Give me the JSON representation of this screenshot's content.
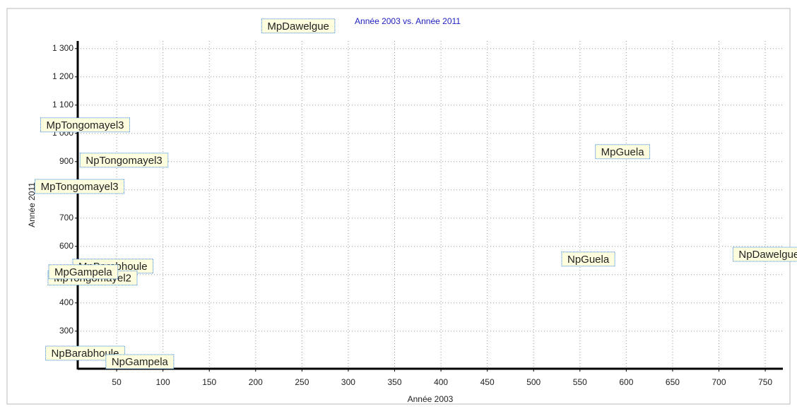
{
  "chart_data": {
    "type": "scatter",
    "title": "Année 2003 vs. Année 2011",
    "x_label": "Année 2003",
    "y_label": "Année 2011",
    "points": [
      {
        "label": "MpDawelgue",
        "x": 246,
        "y": 1380
      },
      {
        "label": "MpTongomayel3",
        "x": 16,
        "y": 1030
      },
      {
        "label": "NpTongomayel3",
        "x": 58,
        "y": 905
      },
      {
        "label": "MpTongomayel3",
        "x": 10,
        "y": 812
      },
      {
        "label": "MpGuela",
        "x": 596,
        "y": 935
      },
      {
        "label": "NpGuela",
        "x": 559,
        "y": 555
      },
      {
        "label": "NpDawelgue",
        "x": 754,
        "y": 572
      },
      {
        "label": "MpBarabhoule",
        "x": 46,
        "y": 530
      },
      {
        "label": "MpTongomayel2",
        "x": 24,
        "y": 488
      },
      {
        "label": "MpGampela",
        "x": 14,
        "y": 510
      },
      {
        "label": "NpBarabhoule",
        "x": 16,
        "y": 222
      },
      {
        "label": "NpGampela",
        "x": 75,
        "y": 192
      }
    ],
    "xlim": [
      8,
      769
    ],
    "xticks": [
      50,
      100,
      150,
      200,
      250,
      300,
      350,
      400,
      450,
      500,
      550,
      600,
      650,
      700,
      750
    ],
    "ylim": [
      167,
      1327
    ],
    "yticks": [
      {
        "value": 300,
        "label": "300"
      },
      {
        "value": 400,
        "label": "400"
      },
      {
        "value": 500,
        "label": "500"
      },
      {
        "value": 600,
        "label": "600"
      },
      {
        "value": 700,
        "label": "700"
      },
      {
        "value": 800,
        "label": "800"
      },
      {
        "value": 900,
        "label": "900"
      },
      {
        "value": 1000,
        "label": "1 000"
      },
      {
        "value": 1100,
        "label": "1 100"
      },
      {
        "value": 1200,
        "label": "1 200"
      },
      {
        "value": 1300,
        "label": "1 300"
      }
    ],
    "grid": true,
    "title_color": "#2020c0",
    "label_fill": "#ffffe0",
    "label_border": "#2a7fd4"
  }
}
